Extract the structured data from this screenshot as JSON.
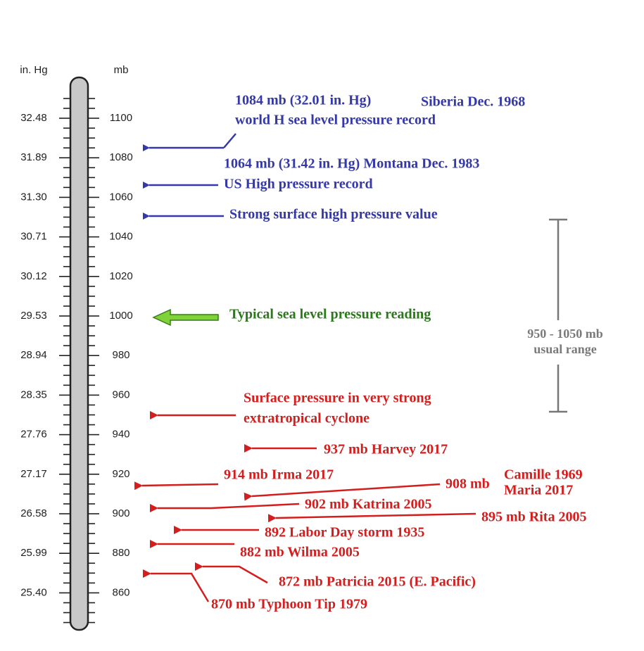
{
  "scale": {
    "left_header": "in. Hg",
    "right_header": "mb",
    "in_hg": [
      "32.48",
      "31.89",
      "31.30",
      "30.71",
      "30.12",
      "29.53",
      "28.94",
      "28.35",
      "27.76",
      "27.17",
      "26.58",
      "25.99",
      "25.40"
    ],
    "mb": [
      "1100",
      "1080",
      "1060",
      "1040",
      "1020",
      "1000",
      "980",
      "960",
      "940",
      "920",
      "900",
      "880",
      "860"
    ]
  },
  "annotations": [
    {
      "lines": [
        "1084 mb (32.01 in. Hg)",
        "Siberia Dec. 1968",
        "world H sea level pressure record"
      ]
    },
    {
      "lines": [
        "1064 mb (31.42 in. Hg) Montana Dec. 1983",
        "US High pressure record"
      ]
    },
    {
      "lines": [
        "Strong surface high pressure value"
      ]
    },
    {
      "lines": [
        "Typical sea level pressure reading"
      ]
    },
    {
      "lines": [
        "Surface pressure in very strong",
        "extratropical cyclone"
      ]
    },
    {
      "lines": [
        "937 mb Harvey 2017"
      ]
    },
    {
      "lines": [
        "914 mb Irma 2017"
      ]
    },
    {
      "lines": [
        "908 mb",
        "Camille 1969",
        "Maria 2017"
      ]
    },
    {
      "lines": [
        "902 mb Katrina 2005"
      ]
    },
    {
      "lines": [
        "895 mb Rita 2005"
      ]
    },
    {
      "lines": [
        "892 Labor Day storm 1935"
      ]
    },
    {
      "lines": [
        "882 mb Wilma 2005"
      ]
    },
    {
      "lines": [
        "872 mb Patricia 2015 (E. Pacific)"
      ]
    },
    {
      "lines": [
        "870 mb Typhoon Tip 1979"
      ]
    }
  ],
  "range": {
    "lines": [
      "950 - 1050 mb",
      "usual range"
    ]
  }
}
